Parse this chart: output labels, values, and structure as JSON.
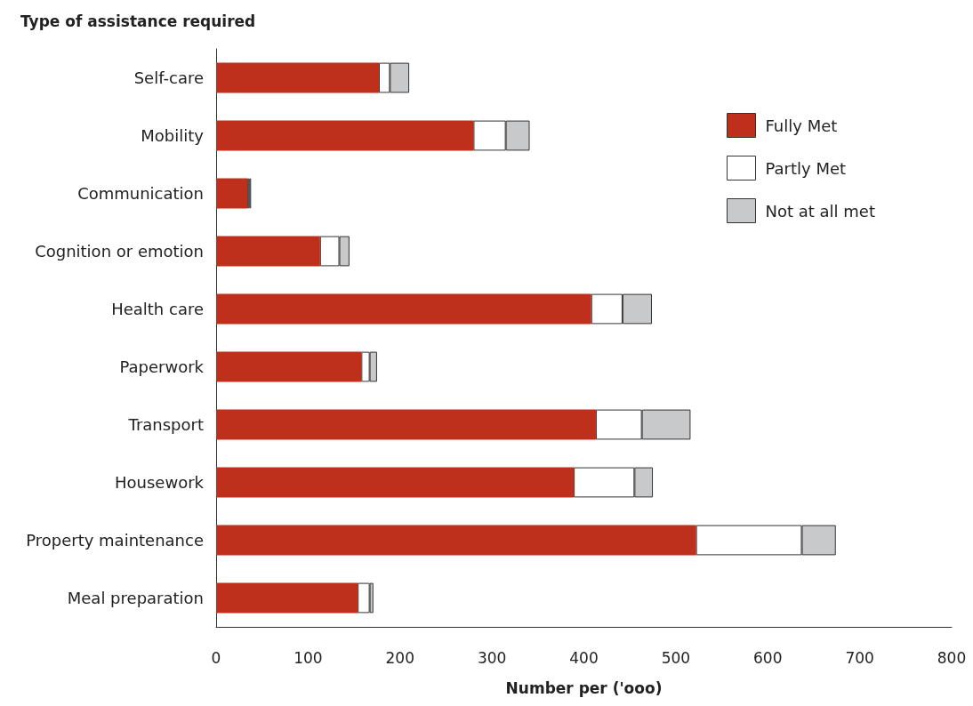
{
  "chart_data": {
    "type": "bar",
    "orientation": "horizontal",
    "stacked": true,
    "ylabel": "Type of assistance required",
    "xlabel": "Number per ('ooo)",
    "categories": [
      "Self-care",
      "Mobility",
      "Communication",
      "Cognition or emotion",
      "Health care",
      "Paperwork",
      "Transport",
      "Housework",
      "Property maintenance",
      "Meal preparation"
    ],
    "series": [
      {
        "name": "Fully Met",
        "color": "#bf301c",
        "values": [
          177,
          280,
          34,
          113,
          408,
          158,
          413,
          389,
          522,
          154
        ]
      },
      {
        "name": "Partly Met",
        "color": "#ffffff",
        "values": [
          12,
          35,
          2,
          21,
          34,
          9,
          50,
          66,
          115,
          13
        ]
      },
      {
        "name": "Not at all met",
        "color": "#c8c9cb",
        "values": [
          21,
          26,
          2,
          11,
          32,
          8,
          53,
          20,
          37,
          4
        ]
      }
    ],
    "xlim": [
      0,
      800
    ],
    "xticks": [
      0,
      100,
      200,
      300,
      400,
      500,
      600,
      700,
      800
    ],
    "grid": false,
    "legend": "top right"
  }
}
